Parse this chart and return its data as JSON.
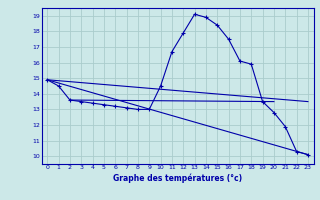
{
  "title": "Graphe des températures (°c)",
  "bg_color": "#cce8e8",
  "grid_color": "#aacccc",
  "line_color": "#0000aa",
  "x_values": [
    0,
    1,
    2,
    3,
    4,
    5,
    6,
    7,
    8,
    9,
    10,
    11,
    12,
    13,
    14,
    15,
    16,
    17,
    18,
    19,
    20,
    21,
    22,
    23
  ],
  "line1": [
    14.9,
    14.5,
    13.6,
    13.5,
    13.4,
    13.3,
    13.2,
    13.1,
    13.0,
    13.0,
    14.5,
    16.7,
    17.9,
    19.1,
    18.9,
    18.4,
    17.5,
    16.1,
    15.9,
    13.5,
    12.8,
    11.9,
    10.3,
    10.1
  ],
  "line2_x": [
    0,
    23
  ],
  "line2_y": [
    14.9,
    13.5
  ],
  "line3_x": [
    0,
    23
  ],
  "line3_y": [
    14.9,
    10.1
  ],
  "line4_x": [
    2,
    20
  ],
  "line4_y": [
    13.6,
    13.5
  ],
  "xlim": [
    -0.5,
    23.5
  ],
  "ylim": [
    9.5,
    19.5
  ],
  "yticks": [
    10,
    11,
    12,
    13,
    14,
    15,
    16,
    17,
    18,
    19
  ],
  "xticks": [
    0,
    1,
    2,
    3,
    4,
    5,
    6,
    7,
    8,
    9,
    10,
    11,
    12,
    13,
    14,
    15,
    16,
    17,
    18,
    19,
    20,
    21,
    22,
    23
  ]
}
